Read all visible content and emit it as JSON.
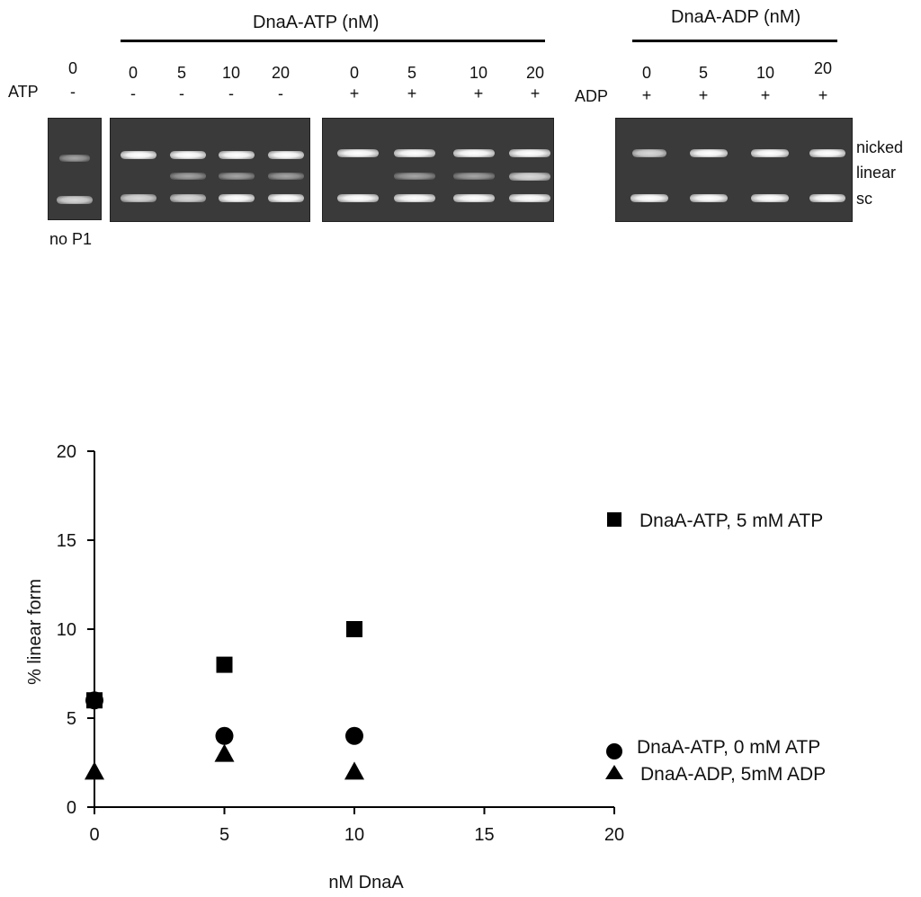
{
  "gel": {
    "header_atp": "DnaA-ATP (nM)",
    "header_adp": "DnaA-ADP (nM)",
    "row_label_atp": "ATP",
    "row_label_adp": "ADP",
    "control": {
      "conc": "0",
      "nucleotide": "-",
      "label": "no P1"
    },
    "atp_lanes": [
      {
        "conc": "0",
        "nucleotide": "-"
      },
      {
        "conc": "5",
        "nucleotide": "-"
      },
      {
        "conc": "10",
        "nucleotide": "-"
      },
      {
        "conc": "20",
        "nucleotide": "-"
      },
      {
        "conc": "0",
        "nucleotide": "+"
      },
      {
        "conc": "5",
        "nucleotide": "+"
      },
      {
        "conc": "10",
        "nucleotide": "+"
      },
      {
        "conc": "20",
        "nucleotide": "+"
      }
    ],
    "adp_lanes": [
      {
        "conc": "0",
        "nucleotide": "+"
      },
      {
        "conc": "5",
        "nucleotide": "+"
      },
      {
        "conc": "10",
        "nucleotide": "+"
      },
      {
        "conc": "20",
        "nucleotide": "+"
      }
    ],
    "band_labels": {
      "nicked": "nicked",
      "linear": "linear",
      "sc": "sc"
    }
  },
  "chart_data": {
    "type": "scatter",
    "title": "",
    "xlabel": "nM DnaA",
    "ylabel": "% linear form",
    "xlim": [
      0,
      20
    ],
    "ylim": [
      0,
      20
    ],
    "xticks": [
      0,
      5,
      10,
      15,
      20
    ],
    "yticks": [
      0,
      5,
      10,
      15,
      20
    ],
    "series": [
      {
        "name": "DnaA-ATP, 5 mM ATP",
        "marker": "square",
        "points": [
          [
            0,
            6
          ],
          [
            5,
            8
          ],
          [
            10,
            10
          ]
        ]
      },
      {
        "name": "DnaA-ATP, 0 mM ATP",
        "marker": "circle",
        "points": [
          [
            0,
            6
          ],
          [
            5,
            4
          ],
          [
            10,
            4
          ]
        ]
      },
      {
        "name": "DnaA-ADP, 5mM ADP",
        "marker": "triangle",
        "points": [
          [
            0,
            2
          ],
          [
            5,
            3
          ],
          [
            10,
            2
          ]
        ]
      }
    ]
  }
}
